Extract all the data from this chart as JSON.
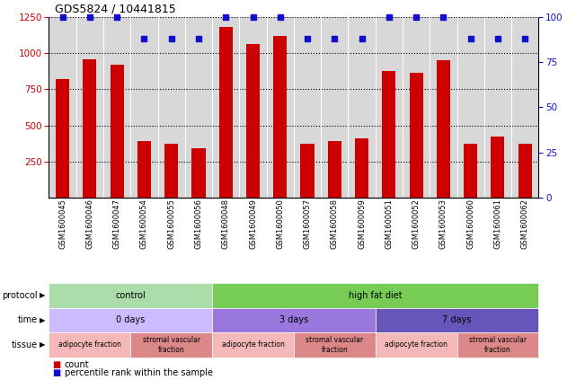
{
  "title": "GDS5824 / 10441815",
  "samples": [
    "GSM1600045",
    "GSM1600046",
    "GSM1600047",
    "GSM1600054",
    "GSM1600055",
    "GSM1600056",
    "GSM1600048",
    "GSM1600049",
    "GSM1600050",
    "GSM1600057",
    "GSM1600058",
    "GSM1600059",
    "GSM1600051",
    "GSM1600052",
    "GSM1600053",
    "GSM1600060",
    "GSM1600061",
    "GSM1600062"
  ],
  "counts": [
    820,
    960,
    920,
    390,
    375,
    340,
    1180,
    1065,
    1120,
    370,
    390,
    410,
    880,
    865,
    950,
    370,
    425,
    370
  ],
  "percentiles": [
    100,
    100,
    100,
    88,
    88,
    88,
    100,
    100,
    100,
    88,
    88,
    88,
    100,
    100,
    100,
    88,
    88,
    88
  ],
  "bar_color": "#cc0000",
  "dot_color": "#1010cc",
  "bg_color": "#d8d8d8",
  "ylim_left": [
    0,
    1250
  ],
  "ylim_right": [
    0,
    100
  ],
  "yticks_left": [
    250,
    500,
    750,
    1000,
    1250
  ],
  "yticks_right": [
    0,
    25,
    50,
    75,
    100
  ],
  "protocol_spans": [
    {
      "label": "control",
      "start": 0,
      "end": 6,
      "color": "#aaddaa"
    },
    {
      "label": "high fat diet",
      "start": 6,
      "end": 18,
      "color": "#77cc55"
    }
  ],
  "time_spans": [
    {
      "label": "0 days",
      "start": 0,
      "end": 6,
      "color": "#ccbbff"
    },
    {
      "label": "3 days",
      "start": 6,
      "end": 12,
      "color": "#9977dd"
    },
    {
      "label": "7 days",
      "start": 12,
      "end": 18,
      "color": "#6655bb"
    }
  ],
  "tissue_spans": [
    {
      "label": "adipocyte fraction",
      "start": 0,
      "end": 3,
      "color": "#f4b8b8"
    },
    {
      "label": "stromal vascular\nfraction",
      "start": 3,
      "end": 6,
      "color": "#dd8888"
    },
    {
      "label": "adipocyte fraction",
      "start": 6,
      "end": 9,
      "color": "#f4b8b8"
    },
    {
      "label": "stromal vascular\nfraction",
      "start": 9,
      "end": 12,
      "color": "#dd8888"
    },
    {
      "label": "adipocyte fraction",
      "start": 12,
      "end": 15,
      "color": "#f4b8b8"
    },
    {
      "label": "stromal vascular\nfraction",
      "start": 15,
      "end": 18,
      "color": "#dd8888"
    }
  ],
  "row_labels": [
    "protocol",
    "time",
    "tissue"
  ],
  "legend_count_label": "count",
  "legend_percentile_label": "percentile rank within the sample"
}
